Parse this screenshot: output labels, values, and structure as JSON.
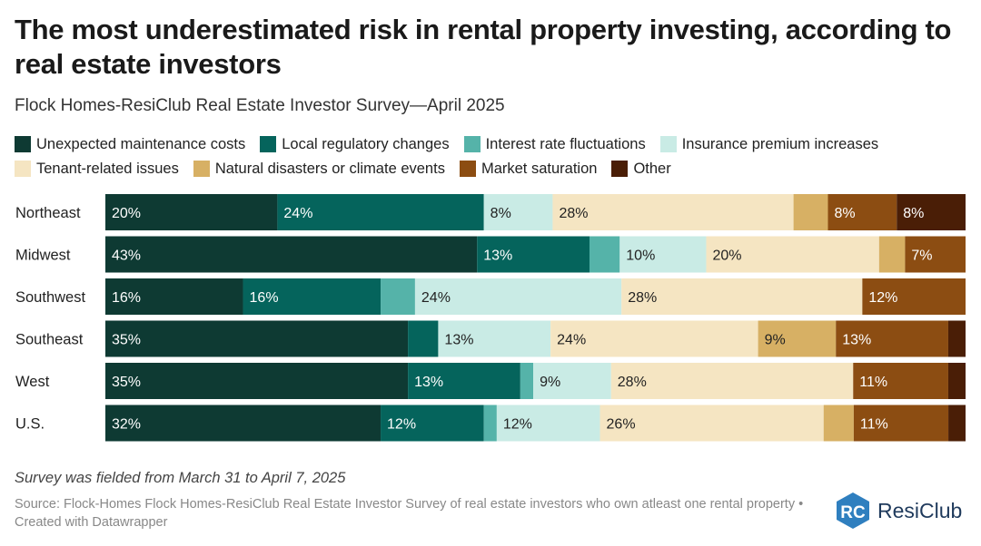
{
  "header": {
    "title": "The most underestimated risk in rental property investing, according to real estate investors",
    "subtitle": "Flock Homes-ResiClub Real Estate Investor Survey—April 2025"
  },
  "footer": {
    "note": "Survey was fielded from March 31 to April 7, 2025",
    "source": "Source: Flock-Homes Flock Homes-ResiClub Real Estate Investor Survey of real estate investors who own atleast one rental property • Created with Datawrapper",
    "logo_text": "ResiClub",
    "logo_mark": "RC"
  },
  "chart_data": {
    "type": "bar",
    "orientation": "horizontal",
    "stacked": true,
    "title": "The most underestimated risk in rental property investing, according to real estate investors",
    "categories": [
      "Northeast",
      "Midwest",
      "Southwest",
      "Southeast",
      "West",
      "U.S."
    ],
    "series": [
      {
        "name": "Unexpected maintenance costs",
        "color": "#0e3a33",
        "label_color": "#ffffff",
        "values": [
          20,
          43,
          16,
          35,
          35,
          32
        ]
      },
      {
        "name": "Local regulatory changes",
        "color": "#05645c",
        "label_color": "#ffffff",
        "values": [
          24,
          13,
          16,
          3.5,
          13,
          12
        ]
      },
      {
        "name": "Interest rate fluctuations",
        "color": "#55b3a9",
        "label_color": "#222222",
        "values": [
          0,
          3.5,
          4,
          0,
          1.5,
          1.5
        ]
      },
      {
        "name": "Insurance premium increases",
        "color": "#c9ebe5",
        "label_color": "#222222",
        "values": [
          8,
          10,
          24,
          13,
          9,
          12
        ]
      },
      {
        "name": "Tenant-related issues",
        "color": "#f5e5c2",
        "label_color": "#222222",
        "values": [
          28,
          20,
          28,
          24,
          28,
          26
        ]
      },
      {
        "name": "Natural disasters or climate events",
        "color": "#d7b064",
        "label_color": "#222222",
        "values": [
          4,
          3,
          0,
          9,
          0,
          3.5
        ]
      },
      {
        "name": "Market saturation",
        "color": "#8c4d12",
        "label_color": "#ffffff",
        "values": [
          8,
          7,
          12,
          13,
          11,
          11
        ]
      },
      {
        "name": "Other",
        "color": "#4a1e06",
        "label_color": "#ffffff",
        "values": [
          8,
          0,
          0,
          2,
          2,
          2
        ]
      }
    ],
    "data_labels": [
      [
        "20%",
        "24%",
        "",
        "8%",
        "28%",
        "",
        "8%",
        "8%"
      ],
      [
        "43%",
        "13%",
        "",
        "10%",
        "20%",
        "",
        "7%",
        ""
      ],
      [
        "16%",
        "16%",
        "",
        "24%",
        "28%",
        "",
        "12%",
        ""
      ],
      [
        "35%",
        "",
        "",
        "13%",
        "24%",
        "9%",
        "13%",
        ""
      ],
      [
        "35%",
        "13%",
        "",
        "9%",
        "28%",
        "",
        "11%",
        ""
      ],
      [
        "32%",
        "12%",
        "",
        "12%",
        "26%",
        "",
        "11%",
        ""
      ]
    ],
    "xlim": [
      0,
      100
    ],
    "legend_position": "top"
  }
}
